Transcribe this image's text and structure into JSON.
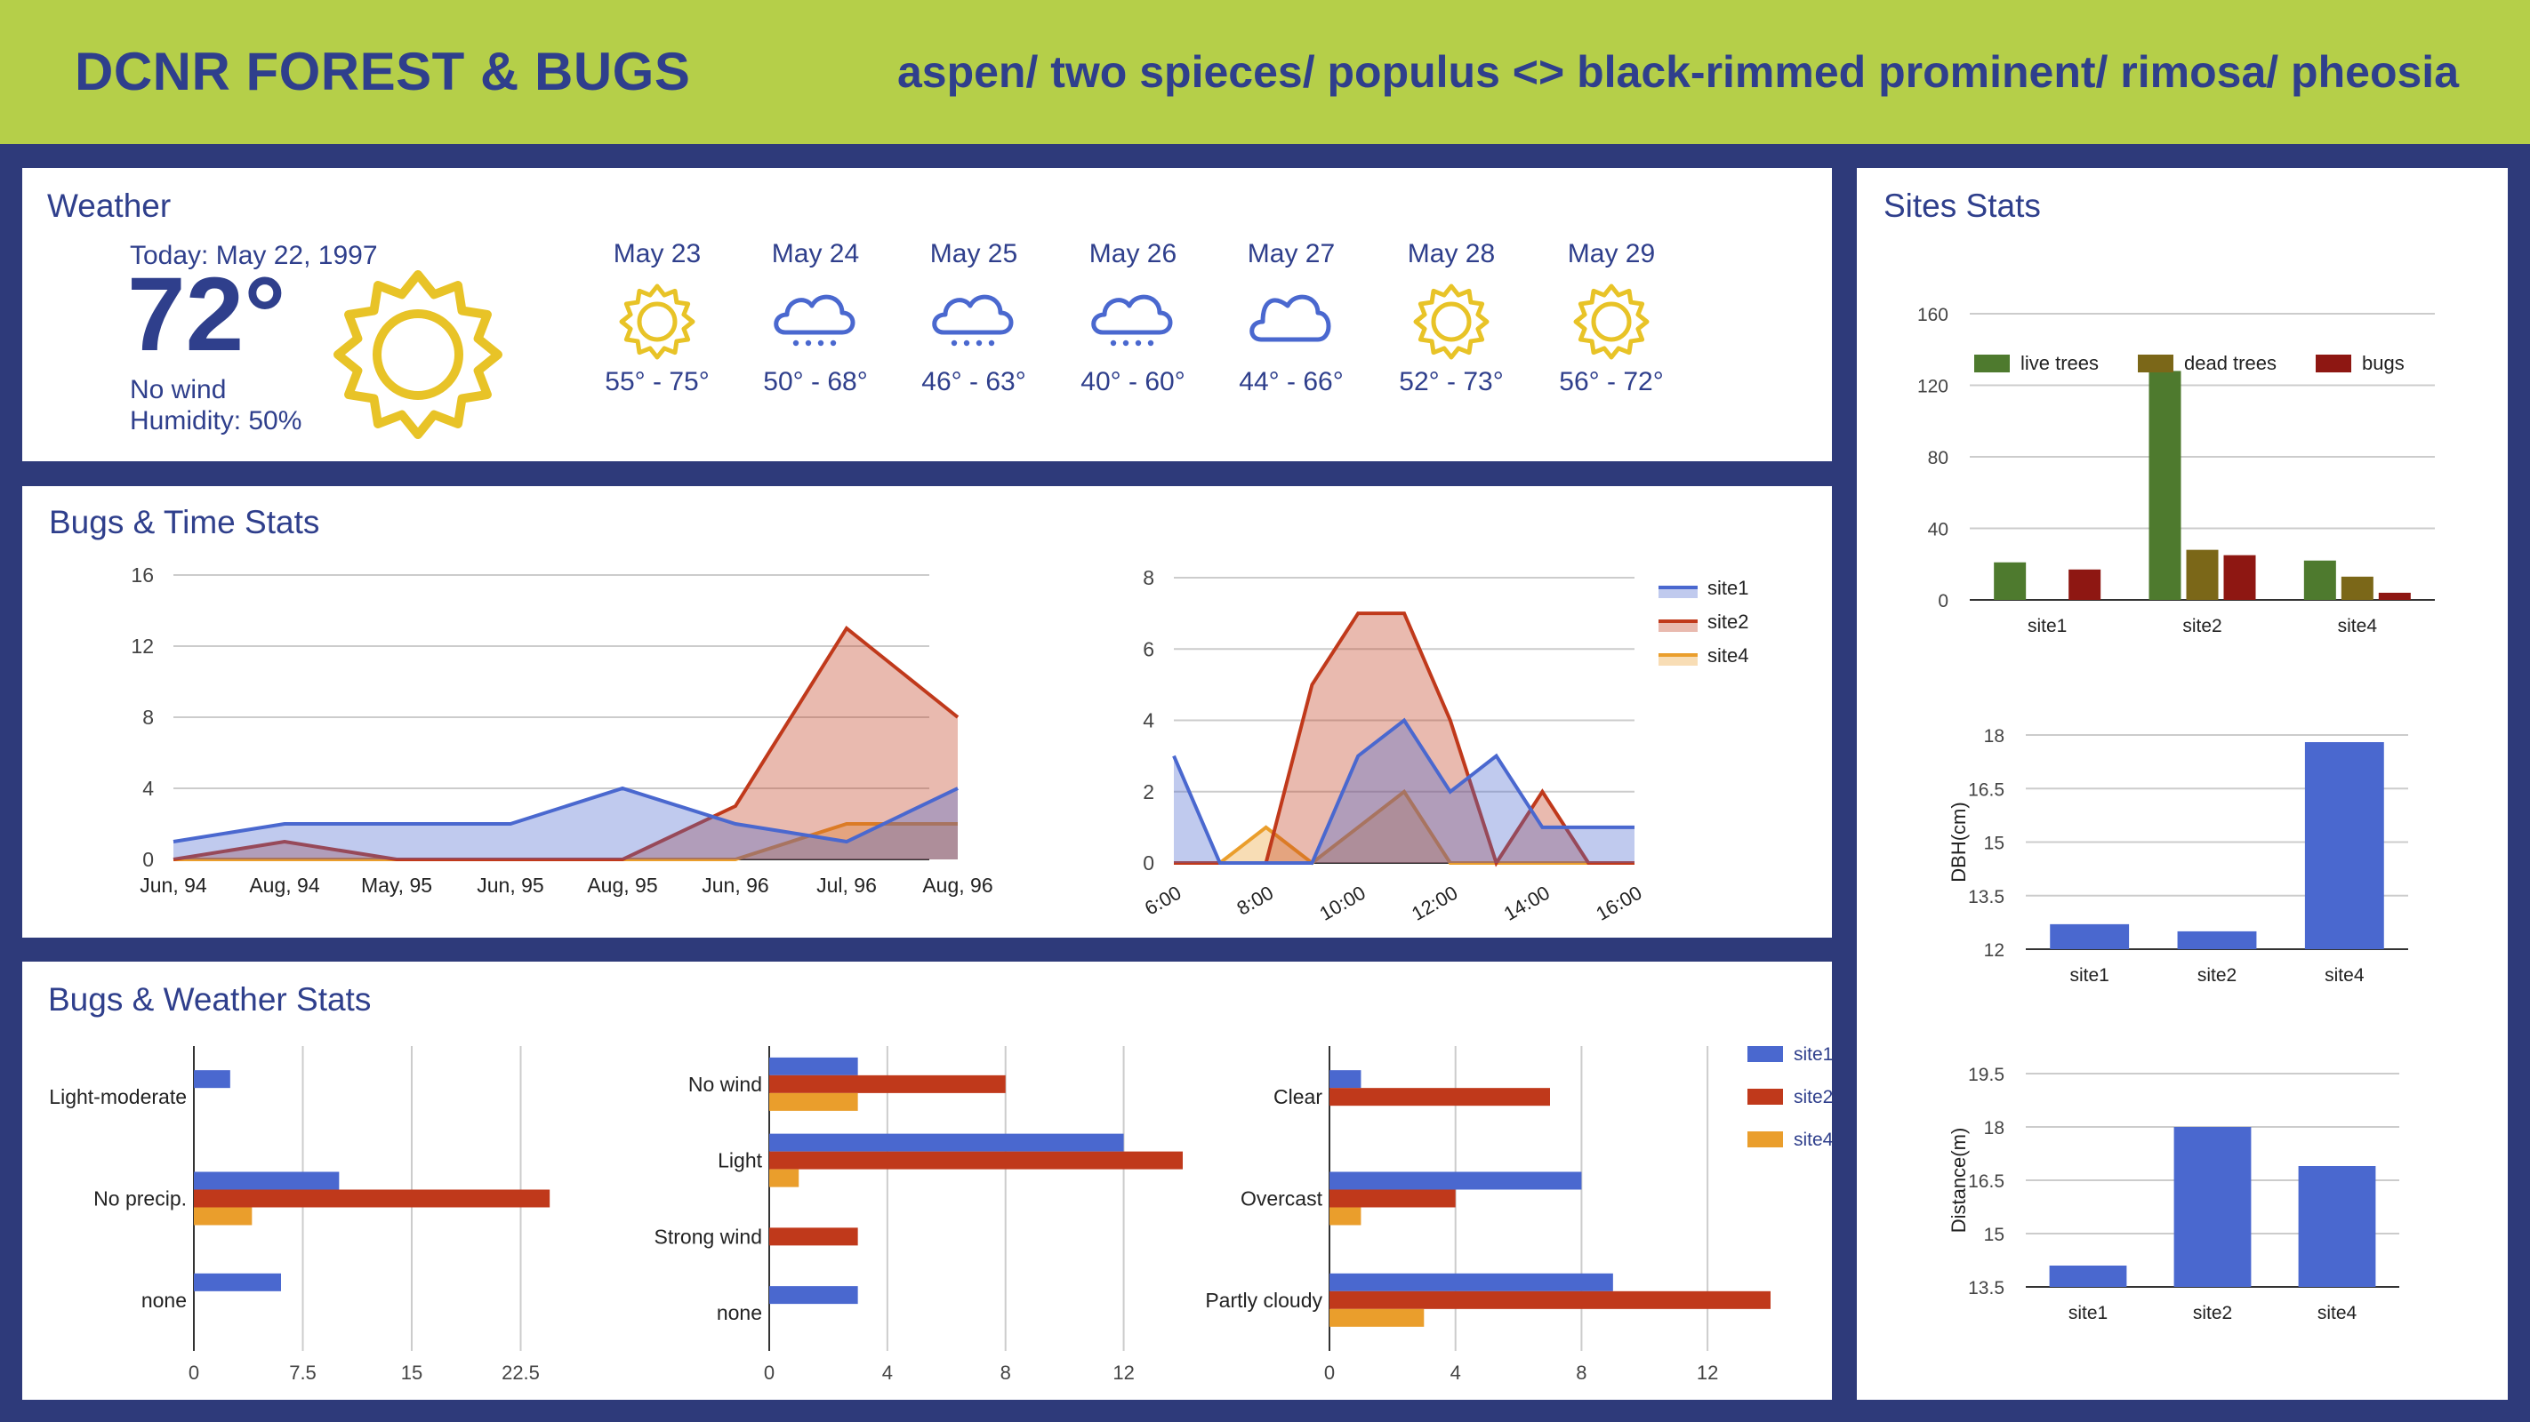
{
  "header": {
    "title": "DCNR FOREST & BUGS",
    "subtitle": "aspen/ two spieces/ populus <> black-rimmed prominent/ rimosa/ pheosia"
  },
  "colors": {
    "header_bg": "#b5cf49",
    "frame": "#2e3a7a",
    "title_text": "#2f3f8c",
    "site1": "#4a68cf",
    "site2": "#c0391b",
    "site4": "#ea9e2c",
    "live_trees": "#4e7a2e",
    "dead_trees": "#7b6718",
    "bugs": "#8e1712",
    "sun": "#e8c327"
  },
  "weather": {
    "title": "Weather",
    "today_label": "Today: May 22, 1997",
    "temp": "72°",
    "wind": "No wind",
    "humidity": "Humidity: 50%",
    "today_icon": "sun-icon",
    "forecast": [
      {
        "date": "May 23",
        "icon": "sun-icon",
        "range": "55° - 75°"
      },
      {
        "date": "May 24",
        "icon": "rain-cloud-icon",
        "range": "50° - 68°"
      },
      {
        "date": "May 25",
        "icon": "rain-cloud-icon",
        "range": "46° - 63°"
      },
      {
        "date": "May 26",
        "icon": "rain-cloud-icon",
        "range": "40° - 60°"
      },
      {
        "date": "May 27",
        "icon": "cloud-icon",
        "range": "44° - 66°"
      },
      {
        "date": "May 28",
        "icon": "sun-icon",
        "range": "52° - 73°"
      },
      {
        "date": "May 29",
        "icon": "sun-icon",
        "range": "56° - 72°"
      }
    ]
  },
  "bugs_time": {
    "title": "Bugs & Time Stats"
  },
  "bugs_weather": {
    "title": "Bugs & Weather Stats"
  },
  "sites": {
    "title": "Sites Stats"
  },
  "chart_data": [
    {
      "id": "bugs-by-month",
      "type": "area",
      "categories": [
        "Jun, 94",
        "Aug, 94",
        "May, 95",
        "Jun, 95",
        "Aug, 95",
        "Jun, 96",
        "Jul, 96",
        "Aug, 96"
      ],
      "series": [
        {
          "name": "site1",
          "values": [
            1,
            2,
            2,
            2,
            4,
            2,
            1,
            4
          ]
        },
        {
          "name": "site2",
          "values": [
            0,
            1,
            0,
            0,
            0,
            3,
            13,
            8
          ]
        },
        {
          "name": "site4",
          "values": [
            0,
            0,
            0,
            0,
            0,
            0,
            2,
            2
          ]
        }
      ],
      "ylim": [
        0,
        16
      ],
      "yticks": [
        "0",
        "4",
        "8",
        "12",
        "16"
      ],
      "grid": true
    },
    {
      "id": "bugs-by-hour",
      "type": "area",
      "x": [
        6,
        7,
        8,
        9,
        10,
        11,
        12,
        13,
        14,
        15,
        16
      ],
      "xticks": [
        "6:00",
        "8:00",
        "10:00",
        "12:00",
        "14:00",
        "16:00"
      ],
      "series": [
        {
          "name": "site1",
          "values": [
            3,
            0,
            0,
            0,
            3,
            4,
            2,
            3,
            1,
            1,
            1
          ]
        },
        {
          "name": "site2",
          "values": [
            0,
            0,
            0,
            5,
            7,
            7,
            4,
            0,
            2,
            0,
            0
          ]
        },
        {
          "name": "site4",
          "values": [
            0,
            0,
            1,
            0,
            1,
            2,
            0,
            0,
            0,
            0,
            0
          ]
        }
      ],
      "ylim": [
        0,
        8
      ],
      "yticks": [
        "0",
        "2",
        "4",
        "6",
        "8"
      ],
      "legend": "right",
      "grid": true
    },
    {
      "id": "bugs-by-precip",
      "type": "bar",
      "orientation": "horizontal",
      "categories": [
        "Light-moderate",
        "No precip.",
        "none"
      ],
      "series": [
        {
          "name": "site1",
          "values": [
            2.5,
            10,
            6
          ]
        },
        {
          "name": "site2",
          "values": [
            0,
            24.5,
            0
          ]
        },
        {
          "name": "site4",
          "values": [
            0,
            4,
            0
          ]
        }
      ],
      "xlim": [
        0,
        24
      ],
      "xticks": [
        "0",
        "7.5",
        "15",
        "22.5"
      ],
      "grid": true
    },
    {
      "id": "bugs-by-wind",
      "type": "bar",
      "orientation": "horizontal",
      "categories": [
        "No wind",
        "Light",
        "Strong wind",
        "none"
      ],
      "series": [
        {
          "name": "site1",
          "values": [
            3,
            12,
            0,
            3
          ]
        },
        {
          "name": "site2",
          "values": [
            8,
            14,
            3,
            0
          ]
        },
        {
          "name": "site4",
          "values": [
            3,
            1,
            0,
            0
          ]
        }
      ],
      "xlim": [
        0,
        14
      ],
      "xticks": [
        "0",
        "4",
        "8",
        "12"
      ],
      "grid": true
    },
    {
      "id": "bugs-by-sky",
      "type": "bar",
      "orientation": "horizontal",
      "categories": [
        "Clear",
        "Overcast",
        "Partly cloudy"
      ],
      "series": [
        {
          "name": "site1",
          "values": [
            1,
            8,
            9
          ]
        },
        {
          "name": "site2",
          "values": [
            7,
            4,
            14
          ]
        },
        {
          "name": "site4",
          "values": [
            0,
            1,
            3
          ]
        }
      ],
      "xlim": [
        0,
        14
      ],
      "xticks": [
        "0",
        "4",
        "8",
        "12"
      ],
      "legend": "right",
      "grid": true
    },
    {
      "id": "trees-bugs-per-site",
      "type": "bar",
      "categories": [
        "site1",
        "site2",
        "site4"
      ],
      "series": [
        {
          "name": "live trees",
          "values": [
            21,
            128,
            22
          ]
        },
        {
          "name": "dead trees",
          "values": [
            0,
            28,
            13
          ]
        },
        {
          "name": "bugs",
          "values": [
            17,
            25,
            4
          ]
        }
      ],
      "ylim": [
        0,
        160
      ],
      "yticks": [
        "0",
        "40",
        "80",
        "120",
        "160"
      ],
      "legend": "top",
      "grid": true
    },
    {
      "id": "dbh-per-site",
      "type": "bar",
      "categories": [
        "site1",
        "site2",
        "site4"
      ],
      "series": [
        {
          "values": [
            12.7,
            12.5,
            17.8
          ]
        }
      ],
      "ylim": [
        12,
        18
      ],
      "yticks": [
        "12",
        "13.5",
        "15",
        "16.5",
        "18"
      ],
      "ylabel": "DBH(cm)",
      "grid": true
    },
    {
      "id": "distance-per-site",
      "type": "bar",
      "categories": [
        "site1",
        "site2",
        "site4"
      ],
      "series": [
        {
          "values": [
            14.1,
            18,
            16.9
          ]
        }
      ],
      "ylim": [
        13.5,
        19.5
      ],
      "yticks": [
        "13.5",
        "15",
        "16.5",
        "18",
        "19.5"
      ],
      "ylabel": "Distance(m)",
      "grid": true
    }
  ]
}
